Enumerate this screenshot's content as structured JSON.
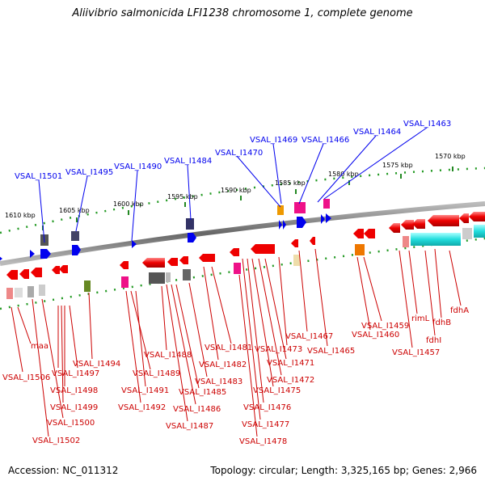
{
  "title": "Aliivibrio salmonicida LFI1238 chromosome 1, complete genome",
  "footer": {
    "accession": "Accession: NC_011312",
    "stats": "Topology: circular; Length: 3,325,165 bp; Genes: 2,966"
  },
  "scale_labels": [
    "1610 kbp",
    "1605 kbp",
    "1600 kbp",
    "1595 kbp",
    "1590 kbp",
    "1585 kbp",
    "1580 kbp",
    "1575 kbp",
    "1570 kbp"
  ],
  "forward_labels": [
    "VSAL_I1501",
    "VSAL_I1495",
    "VSAL_I1490",
    "VSAL_I1484",
    "VSAL_I1470",
    "VSAL_I1469",
    "VSAL_I1466",
    "VSAL_I1464",
    "VSAL_I1463"
  ],
  "reverse_labels": [
    "maa",
    "VSAL_I1506",
    "VSAL_I1497",
    "VSAL_I1494",
    "VSAL_I1498",
    "VSAL_I1499",
    "VSAL_I1500",
    "VSAL_I1502",
    "VSAL_I1488",
    "VSAL_I1489",
    "VSAL_I1491",
    "VSAL_I1492",
    "VSAL_I1486",
    "VSAL_I1487",
    "VSAL_I1485",
    "VSAL_I1483",
    "VSAL_I1482",
    "VSAL_I1481",
    "VSAL_I1473",
    "VSAL_I1471",
    "VSAL_I1472",
    "VSAL_I1475",
    "VSAL_I1476",
    "VSAL_I1477",
    "VSAL_I1478",
    "VSAL_I1467",
    "VSAL_I1465",
    "VSAL_I1459",
    "VSAL_I1460",
    "rimL",
    "fdhB",
    "fdhA",
    "fdhI",
    "VSAL_I1457"
  ],
  "colors": {
    "forward": "#0000ee",
    "reverse": "#ee0000",
    "label_red": "#cc0000",
    "backbone": "#777777",
    "ticks": "#228822",
    "cyan": "#22dddd",
    "magenta": "#ee1188",
    "orange": "#ee7700",
    "olive": "#668822"
  }
}
